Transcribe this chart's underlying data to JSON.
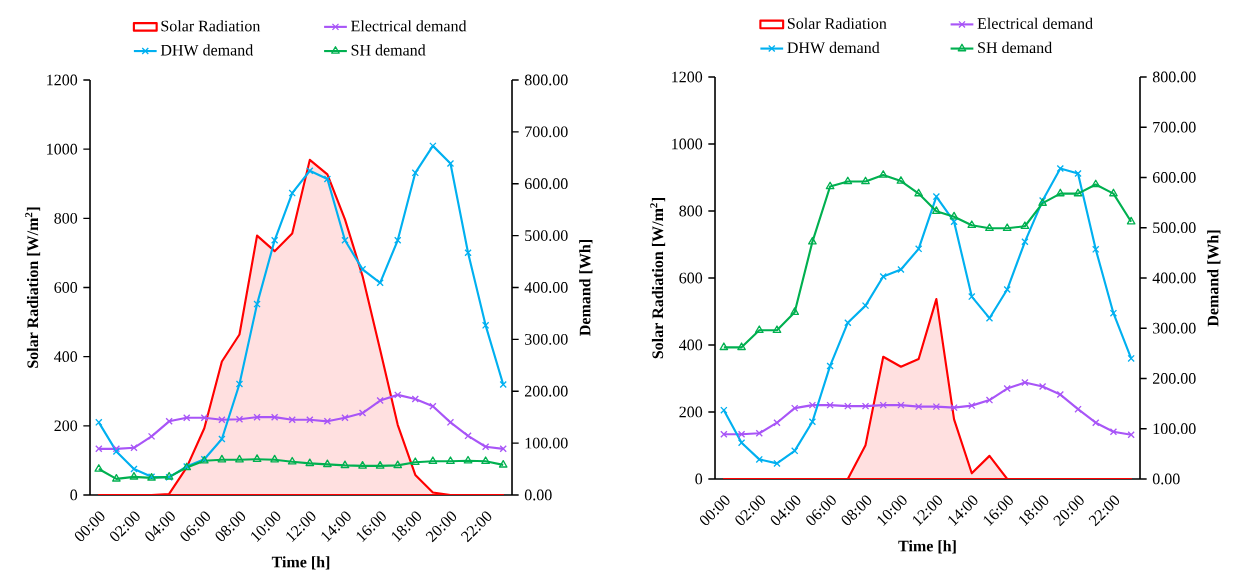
{
  "chart_data": [
    {
      "type": "line",
      "categories": [
        "00:00",
        null,
        "02:00",
        null,
        "04:00",
        null,
        "06:00",
        null,
        "08:00",
        null,
        "10:00",
        null,
        "12:00",
        null,
        "14:00",
        null,
        "16:00",
        null,
        "18:00",
        null,
        "20:00",
        null,
        "22:00",
        null
      ],
      "xlabel": "Time [h]",
      "ylabel": "Solar Radiation [W/m$^{2}$]",
      "y2label": "Demand [Wh]",
      "ylim": [
        0,
        1200
      ],
      "yticks": [
        0,
        200,
        400,
        600,
        800,
        1000,
        1200
      ],
      "y2lim": [
        0,
        800
      ],
      "y2ticks": [
        {
          "value": 0,
          "label": "0.00"
        },
        {
          "value": 100,
          "label": "100.00"
        },
        {
          "value": 200,
          "label": "200.00"
        },
        {
          "value": 300,
          "label": "300.00"
        },
        {
          "value": 400,
          "label": "400.00"
        },
        {
          "value": 500,
          "label": "500.00"
        },
        {
          "value": 600,
          "label": "600.00"
        },
        {
          "value": 700,
          "label": "700.00"
        },
        {
          "value": 800,
          "label": "800.00"
        }
      ],
      "legend": "top",
      "series": [
        {
          "name": "Solar Radiation",
          "type": "area",
          "color": "#ff0000",
          "marker": "none",
          "values": [
            0,
            0,
            0,
            0,
            3,
            80,
            193,
            386,
            464,
            750,
            705,
            756,
            969,
            927,
            797,
            633,
            420,
            203,
            58,
            7,
            0,
            0,
            0,
            0
          ]
        },
        {
          "name": "Electrical demand",
          "type": "line",
          "axis": "y2",
          "color": "#a855f7",
          "marker": "cross",
          "values": [
            89,
            89,
            91,
            113,
            142,
            149,
            149,
            145,
            146,
            150,
            150,
            145,
            145,
            142,
            149,
            158,
            182,
            193,
            185,
            171,
            140,
            114,
            93,
            89
          ]
        },
        {
          "name": "DHW demand",
          "type": "line",
          "axis": "y2",
          "color": "#00b0f0",
          "marker": "cross",
          "values": [
            140,
            84,
            50,
            35,
            34,
            55,
            69,
            108,
            214,
            368,
            491,
            582,
            625,
            609,
            491,
            435,
            409,
            491,
            621,
            673,
            639,
            467,
            327,
            213
          ]
        },
        {
          "name": "SH demand",
          "axis": "y2",
          "color": "#00b050",
          "marker": "triangle",
          "values": [
            50,
            31,
            35,
            33,
            35,
            53,
            66,
            68,
            68,
            69,
            68,
            64,
            61,
            59,
            57,
            56,
            56,
            57,
            63,
            65,
            65,
            66,
            65,
            58
          ]
        }
      ]
    },
    {
      "type": "line",
      "categories": [
        "00:00",
        null,
        "02:00",
        null,
        "04:00",
        null,
        "06:00",
        null,
        "08:00",
        null,
        "10:00",
        null,
        "12:00",
        null,
        "14:00",
        null,
        "16:00",
        null,
        "18:00",
        null,
        "20:00",
        null,
        "22:00",
        null
      ],
      "xlabel": "Time [h]",
      "ylabel": "Solar Radiation [W/m$^{2}$]",
      "y2label": "Demand [Wh]",
      "ylim": [
        0,
        1200
      ],
      "yticks": [
        0,
        200,
        400,
        600,
        800,
        1000,
        1200
      ],
      "y2lim": [
        0,
        800
      ],
      "y2ticks": [
        {
          "value": 0,
          "label": "0.00"
        },
        {
          "value": 100,
          "label": "100.00"
        },
        {
          "value": 200,
          "label": "200.00"
        },
        {
          "value": 300,
          "label": "300.00"
        },
        {
          "value": 400,
          "label": "400.00"
        },
        {
          "value": 500,
          "label": "500.00"
        },
        {
          "value": 600,
          "label": "600.00"
        },
        {
          "value": 700,
          "label": "700.00"
        },
        {
          "value": 800,
          "label": "800.00"
        }
      ],
      "legend": "top",
      "series": [
        {
          "name": "Solar Radiation",
          "type": "area",
          "color": "#ff0000",
          "marker": "none",
          "values": [
            0,
            0,
            0,
            0,
            0,
            0,
            0,
            0,
            101,
            365,
            335,
            358,
            537,
            178,
            17,
            69,
            0,
            0,
            0,
            0,
            0,
            0,
            0,
            0
          ]
        },
        {
          "name": "Electrical demand",
          "axis": "y2",
          "color": "#a855f7",
          "marker": "cross",
          "values": [
            89,
            89,
            91,
            112,
            141,
            147,
            147,
            145,
            145,
            147,
            147,
            144,
            144,
            142,
            146,
            157,
            180,
            192,
            184,
            168,
            139,
            112,
            94,
            88
          ]
        },
        {
          "name": "DHW demand",
          "axis": "y2",
          "color": "#00b0f0",
          "marker": "cross",
          "values": [
            137,
            72,
            39,
            31,
            56,
            114,
            225,
            311,
            345,
            403,
            417,
            458,
            562,
            512,
            363,
            320,
            377,
            472,
            554,
            618,
            608,
            457,
            330,
            240
          ]
        },
        {
          "name": "SH demand",
          "axis": "y2",
          "color": "#00b050",
          "marker": "triangle",
          "values": [
            262,
            262,
            296,
            296,
            332,
            472,
            582,
            592,
            592,
            605,
            593,
            568,
            533,
            522,
            505,
            499,
            499,
            503,
            549,
            568,
            568,
            586,
            568,
            512
          ]
        }
      ]
    }
  ]
}
